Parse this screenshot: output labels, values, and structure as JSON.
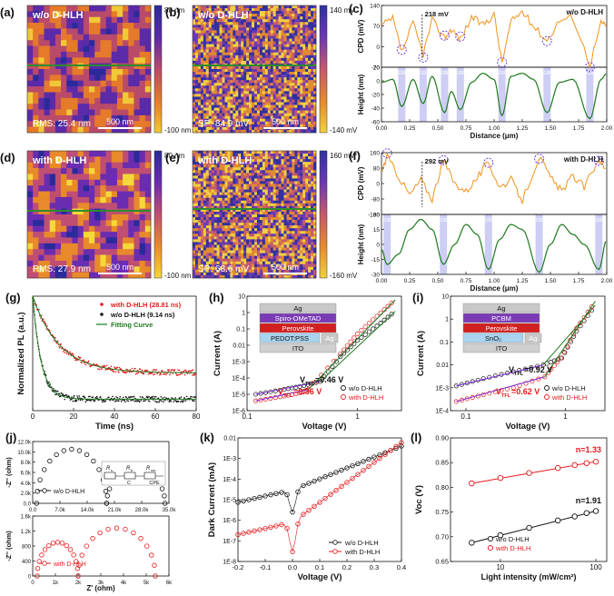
{
  "colors": {
    "orange": "#f0921e",
    "green": "#1d7a1d",
    "red": "#e41a1c",
    "black": "#111111",
    "gb_band": "#b9b9f0",
    "peak_circle": "#6a3bd6",
    "map_line": "#2e8b2e",
    "purple_fit": "#7a2bd6"
  },
  "icons": {
    "gb_marker": "gb-label-icon",
    "scale_bar": "scale-bar-icon",
    "circle": "peak-circle-icon"
  },
  "chart_data": [
    {
      "id": "a",
      "type": "heatmap",
      "panel_label": "(a)",
      "map_label": "w/o D-HLH",
      "rms": "RMS: 25.4 nm",
      "scale_bar": "500 nm",
      "cbar_max": "80 nm",
      "cbar_min": "-100 nm",
      "palette": [
        "#f0c838",
        "#e57a2a",
        "#b94a6a",
        "#5a2aa8",
        "#2a2a9a"
      ]
    },
    {
      "id": "b",
      "type": "heatmap",
      "panel_label": "(b)",
      "map_label": "w/o D-HLH",
      "rms": "SP: 84.9 mV",
      "scale_bar": "500 nm",
      "cbar_max": "140 mV",
      "cbar_min": "-140 mV",
      "palette": [
        "#f0d040",
        "#e28a30",
        "#c45a6c",
        "#6b3ab0",
        "#3030a0"
      ]
    },
    {
      "id": "c",
      "type": "line",
      "panel_label": "(c)",
      "label": "w/o D-HLH",
      "xlabel": "Distance (μm)",
      "top": {
        "ylabel": "CPD (mV)",
        "ylim": [
          -70,
          140
        ],
        "yticks": [
          "-70",
          "0",
          "70",
          "140"
        ],
        "annotation": "218 mV"
      },
      "bottom": {
        "ylabel": "Height (nm)",
        "ylim": [
          -60,
          30
        ],
        "yticks": [
          "-60",
          "-40",
          "-20",
          "0",
          "20"
        ]
      },
      "xlim": [
        0,
        2.0
      ],
      "xticks": [
        "0.00",
        "0.25",
        "0.50",
        "0.75",
        "1.00",
        "1.25",
        "1.50",
        "1.75",
        "2.00"
      ],
      "gb_positions": [
        0.18,
        0.37,
        0.56,
        0.7,
        1.07,
        1.47,
        1.85
      ],
      "gb_label": "GB",
      "cpd": {
        "x": [
          0,
          0.1,
          0.18,
          0.28,
          0.37,
          0.45,
          0.56,
          0.62,
          0.7,
          0.8,
          0.9,
          1.0,
          1.07,
          1.15,
          1.25,
          1.35,
          1.47,
          1.58,
          1.7,
          1.85,
          1.95,
          2.0
        ],
        "y": [
          70,
          95,
          -20,
          80,
          -25,
          90,
          30,
          60,
          25,
          100,
          75,
          110,
          -55,
          85,
          120,
          70,
          20,
          90,
          100,
          -60,
          80,
          75
        ]
      },
      "height": {
        "x": [
          0,
          0.1,
          0.18,
          0.28,
          0.37,
          0.45,
          0.56,
          0.62,
          0.7,
          0.8,
          0.9,
          1.0,
          1.07,
          1.15,
          1.25,
          1.35,
          1.47,
          1.58,
          1.7,
          1.85,
          1.95,
          2.0
        ],
        "y": [
          5,
          10,
          -35,
          10,
          -30,
          15,
          -45,
          -10,
          -40,
          5,
          20,
          10,
          -50,
          15,
          20,
          10,
          -45,
          5,
          10,
          -55,
          10,
          20
        ]
      }
    },
    {
      "id": "d",
      "type": "heatmap",
      "panel_label": "(d)",
      "map_label": "with D-HLH",
      "rms": "RMS: 27.9 nm",
      "scale_bar": "500 nm",
      "cbar_max": "80 nm",
      "cbar_min": "-100 nm",
      "palette": [
        "#f5d83a",
        "#e88a2a",
        "#c04e72",
        "#6a2cb0",
        "#2a2a9a"
      ]
    },
    {
      "id": "e",
      "type": "heatmap",
      "panel_label": "(e)",
      "map_label": "with D-HLH",
      "rms": "SP: 68.6 mV",
      "scale_bar": "500 nm",
      "cbar_max": "160 mV",
      "cbar_min": "-160 mV",
      "palette": [
        "#f0d040",
        "#e28a30",
        "#c45a6c",
        "#6b3ab0",
        "#3030a0"
      ]
    },
    {
      "id": "f",
      "type": "line",
      "panel_label": "(f)",
      "label": "with D-HLH",
      "xlabel": "Distance (μm)",
      "top": {
        "ylabel": "CPD (mV)",
        "ylim": [
          -160,
          160
        ],
        "yticks": [
          "-160",
          "-80",
          "0",
          "80",
          "160"
        ],
        "annotation": "292 mV"
      },
      "bottom": {
        "ylabel": "Height (nm)",
        "ylim": [
          -30,
          30
        ],
        "yticks": [
          "-30",
          "-15",
          "0",
          "15",
          "30"
        ]
      },
      "xlim": [
        0,
        2.0
      ],
      "xticks": [
        "0.00",
        "0.25",
        "0.50",
        "0.75",
        "1.00",
        "1.25",
        "1.50",
        "1.75",
        "2.00"
      ],
      "gb_positions": [
        0.05,
        0.55,
        0.95,
        1.4,
        1.93
      ],
      "gb_label": "GB",
      "cpd": {
        "x": [
          0,
          0.05,
          0.15,
          0.25,
          0.35,
          0.45,
          0.55,
          0.65,
          0.75,
          0.85,
          0.95,
          1.05,
          1.15,
          1.25,
          1.4,
          1.5,
          1.6,
          1.7,
          1.8,
          1.93,
          2.0
        ],
        "y": [
          60,
          140,
          40,
          -60,
          20,
          -80,
          120,
          0,
          -40,
          30,
          110,
          -20,
          20,
          -90,
          140,
          30,
          -40,
          40,
          -20,
          130,
          60
        ]
      },
      "height": {
        "x": [
          0,
          0.05,
          0.15,
          0.25,
          0.35,
          0.45,
          0.55,
          0.65,
          0.75,
          0.85,
          0.95,
          1.05,
          1.15,
          1.25,
          1.4,
          1.5,
          1.6,
          1.7,
          1.8,
          1.93,
          2.0
        ],
        "y": [
          -5,
          -20,
          -10,
          15,
          25,
          15,
          -20,
          0,
          20,
          10,
          -25,
          5,
          20,
          15,
          -28,
          0,
          20,
          10,
          0,
          -25,
          5
        ]
      }
    },
    {
      "id": "g",
      "type": "scatter",
      "panel_label": "(g)",
      "xlabel": "Time (ns)",
      "ylabel": "Normalized PL (a.u.)",
      "xlim": [
        0,
        80
      ],
      "ylim": [
        0,
        1.0
      ],
      "xticks": [
        "0",
        "20",
        "40",
        "60",
        "80"
      ],
      "legend": [
        "with D-HLH (28.81 ns)",
        "w/o D-HLH (9.14 ns)",
        "Fitting Curve"
      ],
      "series": [
        {
          "name": "with D-HLH (28.81 ns)",
          "tau": 28.81,
          "plateau": 0.33,
          "color_key": "red"
        },
        {
          "name": "w/o D-HLH (9.14 ns)",
          "tau": 9.14,
          "plateau": 0.1,
          "color_key": "black"
        }
      ]
    },
    {
      "id": "h",
      "type": "line",
      "panel_label": "(h)",
      "xlabel": "Voltage (V)",
      "ylabel": "Current (A)",
      "xlog": true,
      "ylog": true,
      "xlim": [
        0.1,
        2.5
      ],
      "ylim_exp": [
        -6,
        1
      ],
      "xticks": [
        "0.1",
        "1"
      ],
      "yticks": [
        "1E-6",
        "1E-5",
        "1E-4",
        "1E-3",
        "0.01",
        "0.1",
        "1",
        "10"
      ],
      "stack": [
        "Ag",
        "Spiro-OMeTAD",
        "Perovskite",
        "PEDOT:PSS",
        "ITO",
        "Ag"
      ],
      "vtfl": [
        {
          "text": "V",
          "sub": "TFL",
          "value": "=0.46 V"
        },
        {
          "text": "V",
          "sub": "TFL",
          "value": "=0.36 V"
        }
      ],
      "legend": [
        "w/o D-HLH",
        "with D-HLH"
      ],
      "series": [
        {
          "name": "w/o D-HLH",
          "v": [
            0.12,
            0.2,
            0.3,
            0.46,
            0.7,
            1.0,
            1.5,
            2.2
          ],
          "i": [
            1e-05,
            1.8e-05,
            3e-05,
            6e-05,
            0.002,
            0.02,
            0.15,
            1.2
          ]
        },
        {
          "name": "with D-HLH",
          "v": [
            0.12,
            0.2,
            0.3,
            0.36,
            0.7,
            1.0,
            1.5,
            2.2
          ],
          "i": [
            4e-06,
            7e-06,
            1.2e-05,
            2e-05,
            0.003,
            0.05,
            0.6,
            6
          ]
        }
      ]
    },
    {
      "id": "i",
      "type": "line",
      "panel_label": "(i)",
      "xlabel": "Voltage (V)",
      "ylabel": "Current (A)",
      "xlog": true,
      "ylog": true,
      "xlim": [
        0.07,
        2.5
      ],
      "ylim_exp": [
        -4,
        1
      ],
      "xticks": [
        "0.1",
        "1"
      ],
      "yticks": [
        "1E-4",
        "1E-3",
        "0.01",
        "0.1",
        "1",
        "10"
      ],
      "stack": [
        "Ag",
        "PCBM",
        "Perovskite",
        "SnO₂",
        "ITO",
        "Ag"
      ],
      "vtfl": [
        {
          "text": "V",
          "sub": "TFL",
          "value": "=0.92 V"
        },
        {
          "text": "V",
          "sub": "TFL",
          "value": "=0.62 V"
        }
      ],
      "legend": [
        "w/o D-HLH",
        "with D-HLH"
      ],
      "series": [
        {
          "name": "w/o D-HLH",
          "v": [
            0.08,
            0.15,
            0.3,
            0.6,
            0.92,
            1.3,
            2.0
          ],
          "i": [
            0.0012,
            0.0025,
            0.005,
            0.01,
            0.02,
            0.3,
            4
          ]
        },
        {
          "name": "with D-HLH",
          "v": [
            0.08,
            0.15,
            0.3,
            0.62,
            0.9,
            1.3,
            2.0
          ],
          "i": [
            0.00025,
            0.0005,
            0.001,
            0.003,
            0.02,
            0.4,
            6
          ]
        }
      ]
    },
    {
      "id": "j",
      "type": "scatter",
      "panel_label": "(j)",
      "xlabel": "Z' (ohm)",
      "top": {
        "ylabel": "-Z'' (ohm)",
        "legend": "w/o D-HLH",
        "xlim": [
          0,
          35000
        ],
        "ylim": [
          0,
          12000
        ],
        "xticks": [
          "0.0",
          "7.0k",
          "14.0k",
          "21.0k",
          "28.0k",
          "35.0k"
        ],
        "yticks": [
          "0.0",
          "2.0k",
          "4.0k",
          "6.0k",
          "8.0k",
          "10.0k",
          "12.0k"
        ],
        "arcs": [
          {
            "start": 1000,
            "end": 19000,
            "height": 10500
          },
          {
            "start": 19000,
            "end": 34000,
            "height": 6500
          }
        ]
      },
      "bottom": {
        "ylabel": "-Z'' (ohm)",
        "legend": "with D-HLH",
        "xlim": [
          0,
          6000
        ],
        "ylim": [
          0,
          1600
        ],
        "xticks": [
          "0",
          "1k",
          "2k",
          "3k",
          "4k",
          "5k",
          "6k"
        ],
        "yticks": [
          "0",
          "400",
          "800",
          "1.2k",
          "1.6k"
        ],
        "arcs": [
          {
            "start": 200,
            "end": 2000,
            "height": 900
          },
          {
            "start": 2000,
            "end": 5400,
            "height": 1280
          }
        ]
      },
      "circuit": [
        "R",
        "s",
        "R",
        "tr",
        "R",
        "rec",
        "C",
        "CPE"
      ]
    },
    {
      "id": "k",
      "type": "line",
      "panel_label": "(k)",
      "xlabel": "Voltage (V)",
      "ylabel": "Dark Current (mA)",
      "ylog": true,
      "xlim": [
        -0.2,
        0.4
      ],
      "ylim_exp": [
        -8,
        -2
      ],
      "xticks": [
        "-0.2",
        "-0.1",
        "0.0",
        "0.1",
        "0.2",
        "0.3",
        "0.4"
      ],
      "yticks": [
        "1E-8",
        "1E-7",
        "1E-6",
        "1E-5",
        "1E-4",
        "1E-3",
        "0.01"
      ],
      "legend": [
        "w/o D-HLH",
        "with D-HLH"
      ],
      "series": [
        {
          "name": "w/o D-HLH",
          "floor": 3e-05,
          "dip": 2.5e-06,
          "rise": 0.004
        },
        {
          "name": "with D-HLH",
          "floor": 8e-07,
          "dip": 3e-08,
          "rise": 0.006
        }
      ]
    },
    {
      "id": "l",
      "type": "line",
      "panel_label": "(l)",
      "xlabel": "Light intensity (mW/cm²)",
      "ylabel": "Voc (V)",
      "xlog": true,
      "xlim": [
        3,
        130
      ],
      "ylim": [
        0.65,
        0.9
      ],
      "xticks": [
        "10",
        "100"
      ],
      "yticks": [
        "0.65",
        "0.70",
        "0.75",
        "0.80",
        "0.85",
        "0.90"
      ],
      "legend": [
        "w/o D-HLH",
        "with D-HLH"
      ],
      "annotations": [
        "n=1.33",
        "n=1.91"
      ],
      "series": [
        {
          "name": "w/o D-HLH",
          "x": [
            5,
            10,
            20,
            40,
            60,
            80,
            100
          ],
          "y": [
            0.688,
            0.703,
            0.718,
            0.733,
            0.741,
            0.748,
            0.752
          ]
        },
        {
          "name": "with D-HLH",
          "x": [
            5,
            10,
            20,
            40,
            60,
            80,
            100
          ],
          "y": [
            0.808,
            0.819,
            0.829,
            0.839,
            0.845,
            0.849,
            0.852
          ]
        }
      ]
    }
  ]
}
